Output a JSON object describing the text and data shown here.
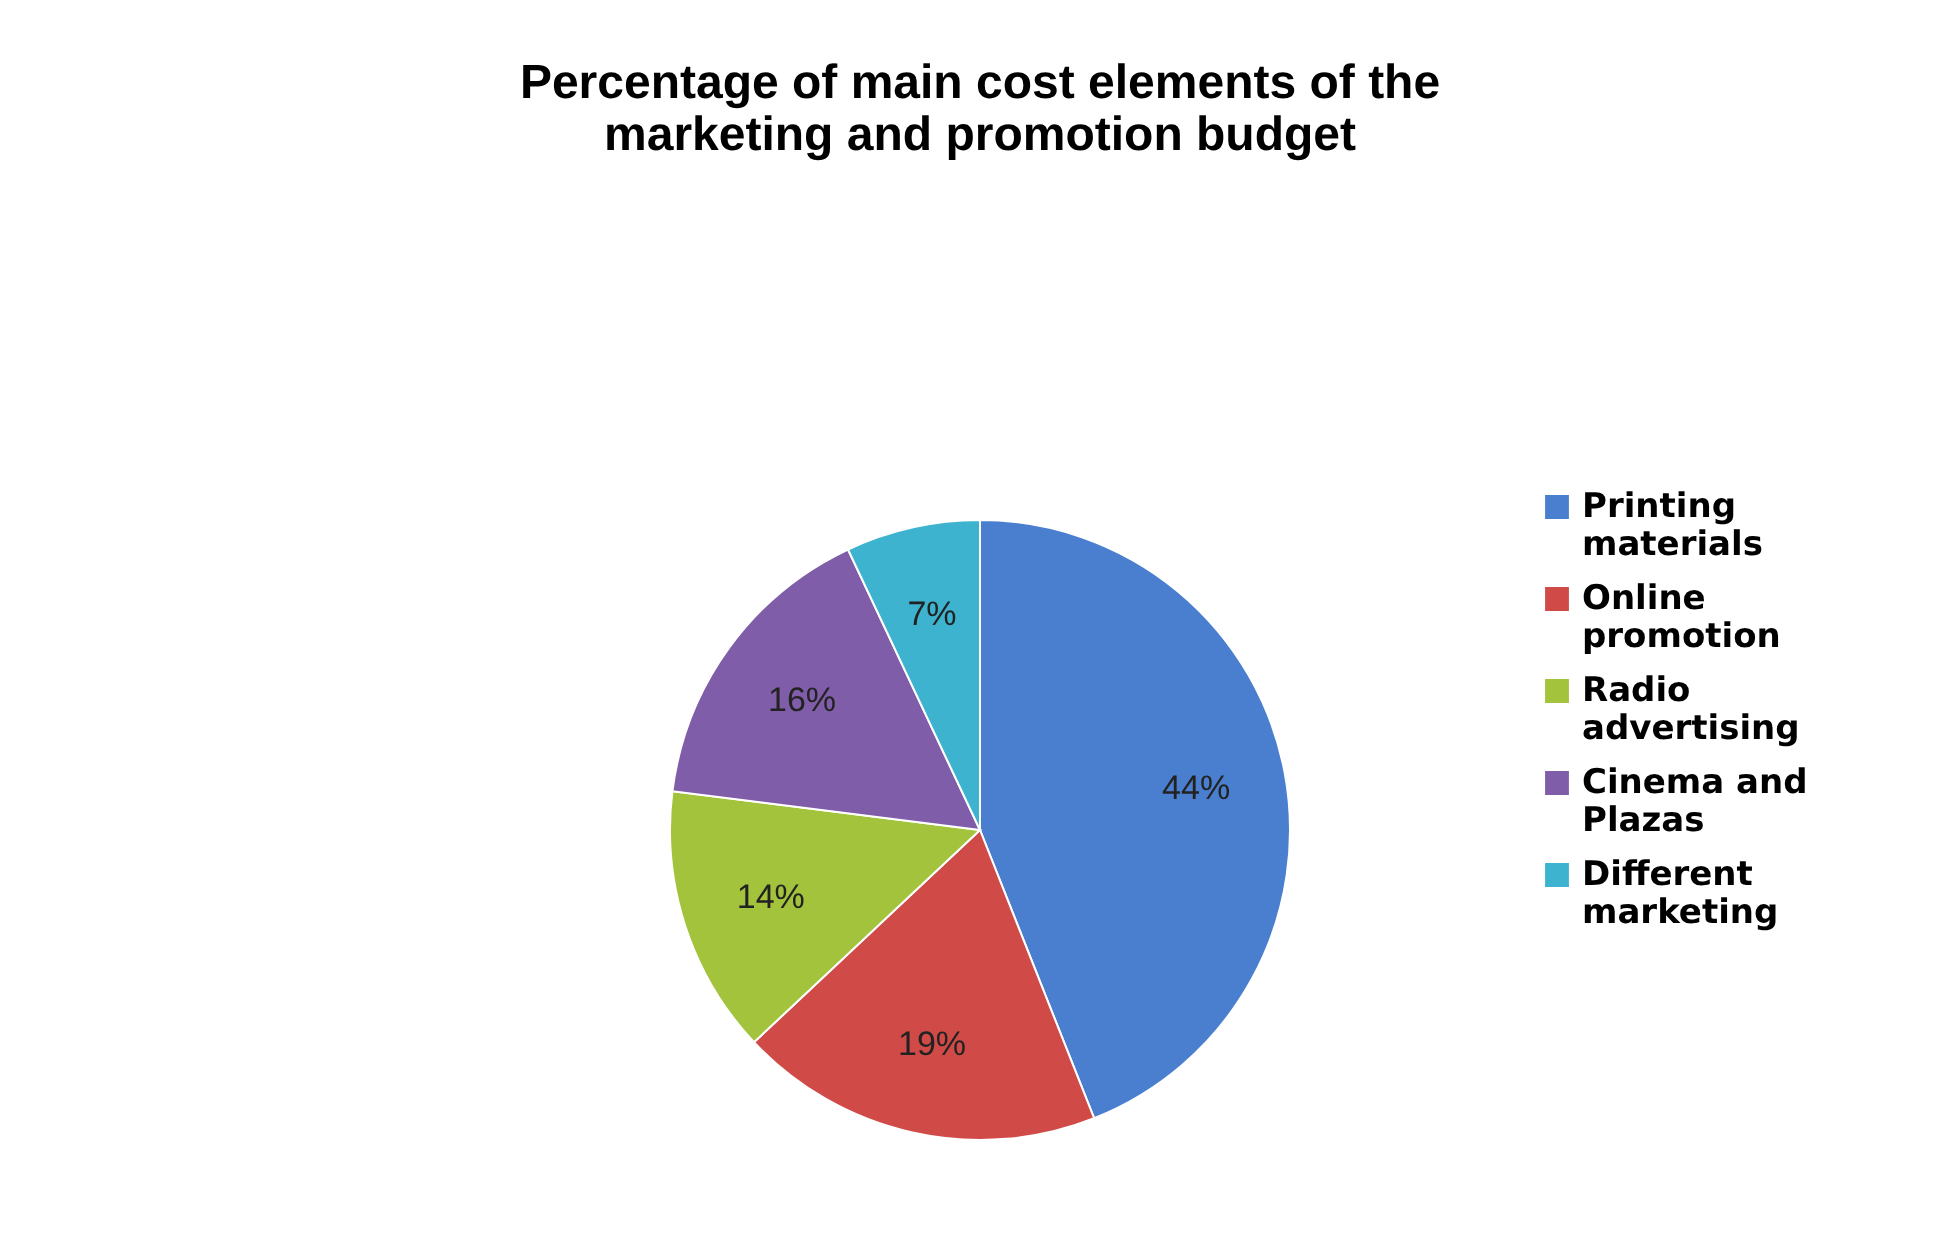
{
  "chart_data": {
    "type": "pie",
    "title": "Percentage of main cost elements of the marketing and promotion budget",
    "categories": [
      "Printing materials",
      "Online promotion",
      "Radio advertising",
      "Cinema and Plazas",
      "Different marketing"
    ],
    "values": [
      44,
      19,
      14,
      16,
      7
    ],
    "colors": [
      "#4a7fd0",
      "#d04a48",
      "#a3c33c",
      "#7f5da8",
      "#3db3cf"
    ],
    "value_labels": [
      "44%",
      "19%",
      "14%",
      "16%",
      "7%"
    ],
    "legend": "right"
  }
}
